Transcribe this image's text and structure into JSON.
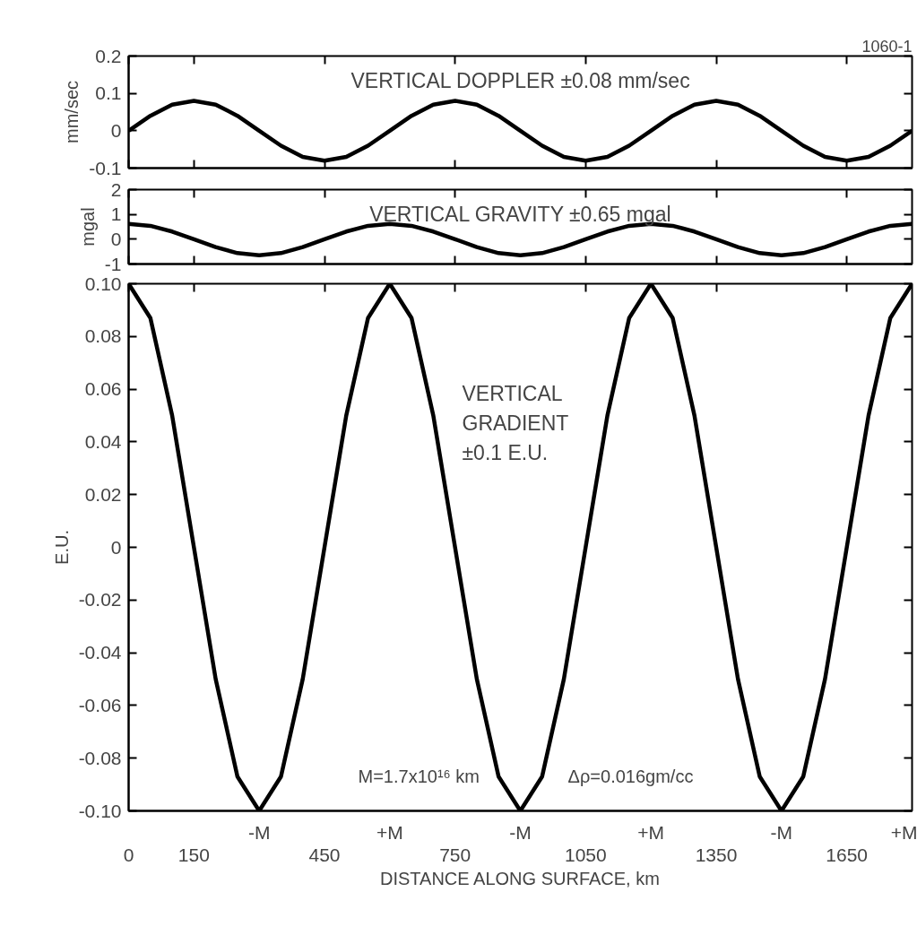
{
  "chart_data": [
    {
      "type": "line",
      "title": "VERTICAL DOPPLER ±0.08 mm/sec",
      "ylabel": "mm/sec",
      "annotations": [
        "1060-1"
      ],
      "x": [
        0,
        50,
        100,
        150,
        200,
        250,
        300,
        350,
        400,
        450,
        500,
        550,
        600,
        650,
        700,
        750,
        800,
        850,
        900,
        950,
        1000,
        1050,
        1100,
        1150,
        1200,
        1250,
        1300,
        1350,
        1400,
        1450,
        1500,
        1550,
        1600,
        1650,
        1700,
        1750,
        1800
      ],
      "series": [
        {
          "color": "#000000",
          "values": [
            0,
            0.04,
            0.07,
            0.08,
            0.07,
            0.04,
            0,
            -0.04,
            -0.07,
            -0.08,
            -0.07,
            -0.04,
            0,
            0.04,
            0.07,
            0.08,
            0.07,
            0.04,
            0,
            -0.04,
            -0.07,
            -0.08,
            -0.07,
            -0.04,
            0,
            0.04,
            0.07,
            0.08,
            0.07,
            0.04,
            0,
            -0.04,
            -0.07,
            -0.08,
            -0.07,
            -0.04,
            0
          ]
        }
      ],
      "xlim": [
        0,
        1800
      ],
      "xticks": [
        0,
        150,
        450,
        750,
        1050,
        1350,
        1650
      ],
      "ylim": [
        -0.1,
        0.2
      ],
      "yticks": [
        -0.1,
        0,
        0.1,
        0.2
      ],
      "tick_labels": "y"
    },
    {
      "type": "line",
      "title": "VERTICAL GRAVITY ±0.65 mgal",
      "ylabel": "mgal",
      "x": [
        0,
        50,
        100,
        150,
        200,
        250,
        300,
        350,
        400,
        450,
        500,
        550,
        600,
        650,
        700,
        750,
        800,
        850,
        900,
        950,
        1000,
        1050,
        1100,
        1150,
        1200,
        1250,
        1300,
        1350,
        1400,
        1450,
        1500,
        1550,
        1600,
        1650,
        1700,
        1750,
        1800
      ],
      "series": [
        {
          "color": "#000000",
          "values": [
            0.62,
            0.54,
            0.31,
            0,
            -0.32,
            -0.56,
            -0.65,
            -0.56,
            -0.32,
            0,
            0.31,
            0.54,
            0.62,
            0.54,
            0.31,
            0,
            -0.32,
            -0.56,
            -0.65,
            -0.56,
            -0.32,
            0,
            0.31,
            0.54,
            0.62,
            0.54,
            0.31,
            0,
            -0.32,
            -0.56,
            -0.65,
            -0.56,
            -0.32,
            0,
            0.31,
            0.54,
            0.62
          ]
        }
      ],
      "xlim": [
        0,
        1800
      ],
      "xticks": [
        0,
        150,
        450,
        750,
        1050,
        1350,
        1650
      ],
      "ylim": [
        -1,
        2
      ],
      "yticks": [
        -1,
        0,
        1,
        2
      ],
      "tick_labels": "y"
    },
    {
      "type": "line",
      "title": "VERTICAL\nGRADIENT\n±0.1 E.U.",
      "ylabel": "E.U.",
      "xlabel": "DISTANCE ALONG SURFACE, km",
      "annotations": [
        "M=1.7x10¹⁶ km",
        "Δρ=0.016gm/cc",
        "-M",
        "+M",
        "-M",
        "+M",
        "-M",
        "+M"
      ],
      "x": [
        0,
        50,
        100,
        150,
        200,
        250,
        300,
        350,
        400,
        450,
        500,
        550,
        600,
        650,
        700,
        750,
        800,
        850,
        900,
        950,
        1000,
        1050,
        1100,
        1150,
        1200,
        1250,
        1300,
        1350,
        1400,
        1450,
        1500,
        1550,
        1600,
        1650,
        1700,
        1750,
        1800
      ],
      "series": [
        {
          "color": "#000000",
          "values": [
            0.1,
            0.087,
            0.05,
            0,
            -0.05,
            -0.087,
            -0.1,
            -0.087,
            -0.05,
            0,
            0.05,
            0.087,
            0.1,
            0.087,
            0.05,
            0,
            -0.05,
            -0.087,
            -0.1,
            -0.087,
            -0.05,
            0,
            0.05,
            0.087,
            0.1,
            0.087,
            0.05,
            0,
            -0.05,
            -0.087,
            -0.1,
            -0.087,
            -0.05,
            0,
            0.05,
            0.087,
            0.1
          ]
        }
      ],
      "xlim": [
        0,
        1800
      ],
      "xticks": [
        0,
        150,
        450,
        750,
        1050,
        1350,
        1650
      ],
      "ylim": [
        -0.1,
        0.1
      ],
      "yticks": [
        {
          "value": -0.1,
          "label": "-0.10"
        },
        -0.08,
        -0.06,
        -0.04,
        -0.02,
        0,
        0.02,
        0.04,
        0.06,
        0.08,
        {
          "value": 0.1,
          "label": "0.10"
        }
      ]
    }
  ]
}
